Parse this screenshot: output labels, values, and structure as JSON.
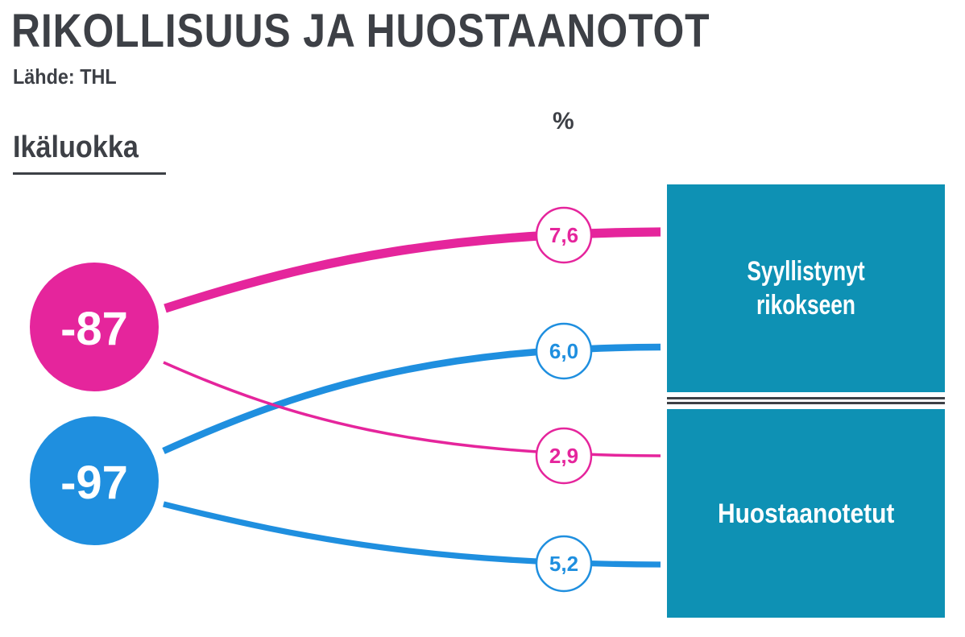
{
  "header": {
    "title": "RIKOLLISUUS JA HUOSTAANOTOT",
    "source": "Lähde: THL",
    "unit": "%",
    "axis_heading": "Ikäluokka"
  },
  "colors": {
    "group_87": "#e5259c",
    "group_97": "#1f8fdf",
    "outcome_box": "#0e91b4",
    "text_dark": "#3d4046"
  },
  "groups": [
    {
      "label": "-87",
      "color": "#e5259c"
    },
    {
      "label": "-97",
      "color": "#1f8fdf"
    }
  ],
  "outcomes": [
    {
      "label_line1": "Syyllistynyt",
      "label_line2": "rikokseen"
    },
    {
      "label": "Huostaanotetut"
    }
  ],
  "chart_data": {
    "type": "flow",
    "unit": "%",
    "sources": [
      "-87",
      "-97"
    ],
    "targets": [
      "Syyllistynyt rikokseen",
      "Huostaanotetut"
    ],
    "links": [
      {
        "source": "-87",
        "target": "Syyllistynyt rikokseen",
        "value": 7.6,
        "label": "7,6"
      },
      {
        "source": "-97",
        "target": "Syyllistynyt rikokseen",
        "value": 6.0,
        "label": "6,0"
      },
      {
        "source": "-87",
        "target": "Huostaanotetut",
        "value": 2.9,
        "label": "2,9"
      },
      {
        "source": "-97",
        "target": "Huostaanotetut",
        "value": 5.2,
        "label": "5,2"
      }
    ]
  }
}
